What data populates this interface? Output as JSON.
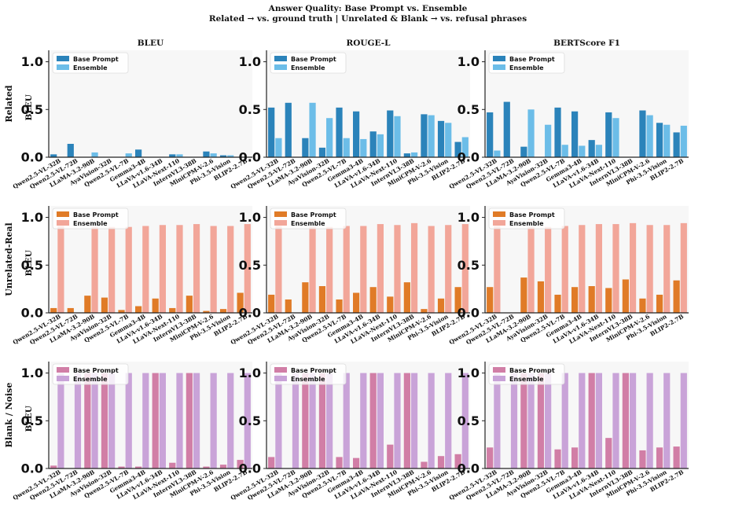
{
  "suptitle": [
    "Answer Quality: Base Prompt vs. Ensemble",
    "Related → vs. ground truth  |  Unrelated & Blank → vs. refusal phrases"
  ],
  "columns": [
    "BLEU",
    "ROUGE-L",
    "BERTScore F1"
  ],
  "rows": [
    "Related",
    "Unrelated-Real",
    "Blank / Noise"
  ],
  "ylabel_first_column": "BLEU",
  "chart_data": {
    "type": "bar",
    "layout": "grid 3x3, rows share legend labels, grouped bars",
    "categories": [
      "Qwen2.5-VL-32B",
      "Qwen2.5-VL-72B",
      "LLaMA-3.2-90B",
      "AyaVision-32B",
      "Qwen2.5-VL-7B",
      "Gemma3-4B",
      "LLaVA-v1.6-34B",
      "LLaVA-Next-110",
      "InternVL3-38B",
      "MiniCPM-V-2.6",
      "Phi-3.5-Vision",
      "BLIP2-2.7B"
    ],
    "series_names": [
      "Base Prompt",
      "Ensemble"
    ],
    "yticks": [
      "0.0",
      "0.5",
      "1.0"
    ],
    "ylim": [
      0,
      1.12
    ],
    "legend_position": "upper left",
    "grid": false,
    "colors": {
      "Related": [
        "#2b83ba",
        "#6cbde8"
      ],
      "Unrelated-Real": [
        "#e07b27",
        "#f2a699"
      ],
      "Blank / Noise": [
        "#d17ea6",
        "#c9a3d8"
      ]
    },
    "panels": {
      "Related": {
        "BLEU": {
          "base": [
            0.03,
            0.14,
            0.0,
            0.0,
            0.0,
            0.08,
            0.0,
            0.03,
            0.0,
            0.06,
            0.02,
            0.0
          ],
          "ens": [
            0.0,
            0.0,
            0.05,
            0.0,
            0.04,
            0.0,
            0.0,
            0.03,
            0.0,
            0.04,
            0.02,
            0.0
          ]
        },
        "ROUGE-L": {
          "base": [
            0.52,
            0.57,
            0.2,
            0.1,
            0.52,
            0.48,
            0.27,
            0.49,
            0.04,
            0.45,
            0.38,
            0.16
          ],
          "ens": [
            0.2,
            0.0,
            0.57,
            0.41,
            0.2,
            0.19,
            0.24,
            0.43,
            0.05,
            0.44,
            0.36,
            0.21
          ]
        },
        "BERTScore F1": {
          "base": [
            0.47,
            0.58,
            0.11,
            0.0,
            0.52,
            0.48,
            0.18,
            0.47,
            0.0,
            0.49,
            0.36,
            0.26
          ],
          "ens": [
            0.07,
            0.0,
            0.5,
            0.34,
            0.13,
            0.12,
            0.13,
            0.41,
            0.0,
            0.44,
            0.34,
            0.33
          ]
        }
      },
      "Unrelated-Real": {
        "BLEU": {
          "base": [
            0.05,
            0.05,
            0.18,
            0.16,
            0.03,
            0.07,
            0.15,
            0.05,
            0.18,
            0.02,
            0.04,
            0.21
          ],
          "ens": [
            0.91,
            0.0,
            0.9,
            0.9,
            0.9,
            0.91,
            0.92,
            0.92,
            0.93,
            0.91,
            0.91,
            0.93
          ]
        },
        "ROUGE-L": {
          "base": [
            0.19,
            0.14,
            0.32,
            0.28,
            0.14,
            0.21,
            0.27,
            0.17,
            0.32,
            0.04,
            0.15,
            0.27
          ],
          "ens": [
            0.91,
            0.0,
            0.9,
            0.9,
            0.91,
            0.91,
            0.93,
            0.92,
            0.94,
            0.91,
            0.92,
            0.93
          ]
        },
        "BERTScore F1": {
          "base": [
            0.27,
            0.0,
            0.37,
            0.33,
            0.19,
            0.27,
            0.28,
            0.26,
            0.35,
            0.15,
            0.19,
            0.34
          ],
          "ens": [
            0.91,
            0.0,
            0.9,
            0.9,
            0.91,
            0.92,
            0.93,
            0.93,
            0.94,
            0.92,
            0.92,
            0.94
          ]
        }
      },
      "Blank / Noise": {
        "BLEU": {
          "base": [
            0.03,
            0.0,
            1.0,
            1.0,
            0.02,
            0.02,
            1.0,
            0.06,
            1.0,
            0.02,
            0.04,
            0.09
          ],
          "ens": [
            1.0,
            1.0,
            1.0,
            1.0,
            1.0,
            1.0,
            1.0,
            1.0,
            1.0,
            1.0,
            1.0,
            1.0
          ]
        },
        "ROUGE-L": {
          "base": [
            0.12,
            0.0,
            1.0,
            1.0,
            0.12,
            0.11,
            1.0,
            0.25,
            1.0,
            0.07,
            0.13,
            0.15
          ],
          "ens": [
            1.0,
            1.0,
            1.0,
            1.0,
            1.0,
            1.0,
            1.0,
            1.0,
            1.0,
            1.0,
            1.0,
            1.0
          ]
        },
        "BERTScore F1": {
          "base": [
            0.22,
            0.0,
            1.0,
            1.0,
            0.2,
            0.22,
            1.0,
            0.32,
            1.0,
            0.19,
            0.22,
            0.23
          ],
          "ens": [
            1.0,
            1.0,
            1.0,
            1.0,
            1.0,
            1.0,
            1.0,
            1.0,
            1.0,
            1.0,
            1.0,
            1.0
          ]
        }
      }
    }
  }
}
